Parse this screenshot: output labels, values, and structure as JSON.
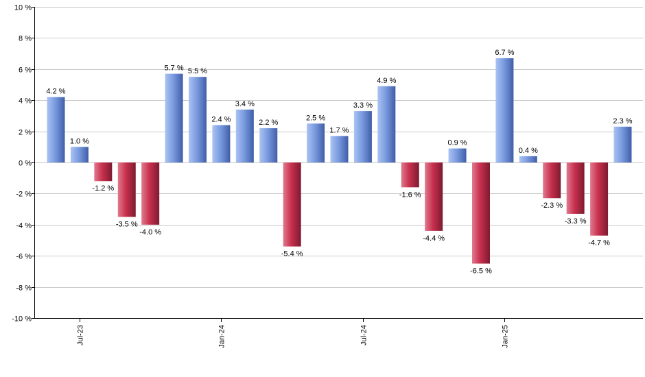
{
  "chart_data": {
    "type": "bar",
    "title": "",
    "xlabel": "",
    "ylabel": "",
    "ylim": [
      -10,
      10
    ],
    "y_ticks": [
      10,
      8,
      6,
      4,
      2,
      0,
      -2,
      -4,
      -6,
      -8,
      -10
    ],
    "y_tick_labels": [
      "10 %",
      "8 %",
      "6 %",
      "4 %",
      "2 %",
      "0 %",
      "-2 %",
      "-4 %",
      "-6 %",
      "-8 %",
      "-10 %"
    ],
    "grid": true,
    "colors": {
      "positive": "#7b9be0",
      "negative": "#c8304e"
    },
    "x_tick_labels": [
      {
        "label": "Jul-23",
        "bar_index": 1
      },
      {
        "label": "Jan-24",
        "bar_index": 7
      },
      {
        "label": "Jul-24",
        "bar_index": 13
      },
      {
        "label": "Jan-25",
        "bar_index": 19
      }
    ],
    "values": [
      4.2,
      1.0,
      -1.2,
      -3.5,
      -4.0,
      5.7,
      5.5,
      2.4,
      3.4,
      2.2,
      -5.4,
      2.5,
      1.7,
      3.3,
      4.9,
      -1.6,
      -4.4,
      0.9,
      -6.5,
      6.7,
      0.4,
      -2.3,
      -3.3,
      -4.7,
      2.3
    ],
    "data_labels": [
      "4.2 %",
      "1.0 %",
      "-1.2 %",
      "-3.5 %",
      "-4.0 %",
      "5.7 %",
      "5.5 %",
      "2.4 %",
      "3.4 %",
      "2.2 %",
      "-5.4 %",
      "2.5 %",
      "1.7 %",
      "3.3 %",
      "4.9 %",
      "-1.6 %",
      "-4.4 %",
      "0.9 %",
      "-6.5 %",
      "6.7 %",
      "0.4 %",
      "-2.3 %",
      "-3.3 %",
      "-4.7 %",
      "2.3 %"
    ]
  }
}
